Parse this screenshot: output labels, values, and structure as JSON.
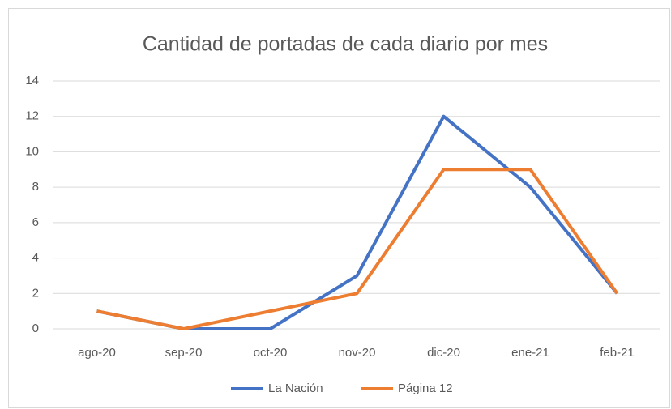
{
  "chart_data": {
    "type": "line",
    "title": "Cantidad de portadas de cada diario por mes",
    "categories": [
      "ago-20",
      "sep-20",
      "oct-20",
      "nov-20",
      "dic-20",
      "ene-21",
      "feb-21"
    ],
    "series": [
      {
        "name": "La Nación",
        "color": "#4472c4",
        "values": [
          1,
          0,
          0,
          3,
          12,
          8,
          2
        ]
      },
      {
        "name": "Página 12",
        "color": "#ed7d31",
        "values": [
          1,
          0,
          1,
          2,
          9,
          9,
          2
        ]
      }
    ],
    "ylim": [
      0,
      14
    ],
    "yticks": [
      0,
      2,
      4,
      6,
      8,
      10,
      12,
      14
    ],
    "grid": true,
    "legend": "bottom"
  }
}
